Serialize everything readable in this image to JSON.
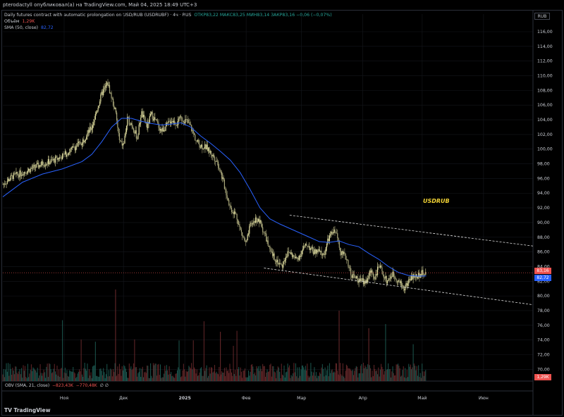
{
  "header": {
    "title": "pterodactyll опубликовал(а) на TradingView.com, Май 04, 2025 18:49 UTC+3",
    "instrument": "Daily futures contract with automatic prolongation on USD/RUB (USDRUBF) · 4ч · RUS",
    "ohlc": "ОТКР83,22  МАКС83,25  МИН83,14  ЗАКР83,16  −0,06 (−0,07%)",
    "volume_label": "Объём",
    "volume_value": "1,29K",
    "sma_label": "SMA (50, close)",
    "sma_value": "82,72",
    "currency_button": "RUB"
  },
  "obv_legend": {
    "label": "OBV (SMA, 21, close)",
    "value1": "−823,43K",
    "value2": "−770,48K",
    "extra": "∅ ∅"
  },
  "branding": "TradingView",
  "badges": {
    "close": "83,16",
    "sma": "82,72",
    "volume": "1,29K"
  },
  "colors": {
    "up": "#26a69a",
    "down": "#ef5350",
    "candle": "#d7d58a",
    "sma": "#2962ff",
    "annotation": "#f2d335",
    "close_badge": "#ef5350",
    "sma_badge": "#2962ff",
    "volume_badge": "#ef5350"
  },
  "chart_data": {
    "type": "line",
    "annotation": "USDRUB",
    "y_ticks": [
      "116,00",
      "114,00",
      "112,00",
      "110,00",
      "108,00",
      "106,00",
      "104,00",
      "102,00",
      "100,00",
      "98,00",
      "96,00",
      "94,00",
      "92,00",
      "90,00",
      "88,00",
      "86,00",
      "84,00",
      "82,00",
      "80,00",
      "78,00",
      "76,00",
      "74,00",
      "72,00",
      "70,00"
    ],
    "ylim": [
      68.4,
      118.4
    ],
    "x_ticks": [
      "Ноя",
      "Дек",
      "2025",
      "Фев",
      "Мар",
      "Апр",
      "Май",
      "Июн"
    ],
    "x_tick_positions_days": [
      31,
      61,
      92,
      123,
      151,
      182,
      212,
      243
    ],
    "xlim_days": [
      0,
      268
    ],
    "price": {
      "x_days": [
        0,
        5,
        10,
        15,
        20,
        25,
        30,
        35,
        40,
        45,
        50,
        53,
        55,
        57,
        59,
        61,
        63,
        65,
        68,
        70,
        73,
        75,
        78,
        80,
        83,
        85,
        88,
        90,
        93,
        95,
        98,
        100,
        103,
        105,
        108,
        110,
        113,
        115,
        118,
        120,
        123,
        125,
        128,
        130,
        133,
        135,
        138,
        141,
        143,
        145,
        148,
        150,
        152,
        154,
        157,
        160,
        162,
        165,
        168,
        171,
        174,
        176,
        178,
        181,
        184,
        186,
        188,
        190,
        192,
        194,
        197,
        200,
        203,
        206,
        209,
        212,
        214
      ],
      "y": [
        95.2,
        96.3,
        96.8,
        97.4,
        98.0,
        98.4,
        99.0,
        100.0,
        101.0,
        103.0,
        107.5,
        109.0,
        107.0,
        105.0,
        101.0,
        100.5,
        104.0,
        103.5,
        101.5,
        105.0,
        103.0,
        104.8,
        103.5,
        102.5,
        103.2,
        104.0,
        103.5,
        104.2,
        103.8,
        103.0,
        101.0,
        100.5,
        100.2,
        99.5,
        98.5,
        97.0,
        94.0,
        92.0,
        91.0,
        89.0,
        87.0,
        89.5,
        90.5,
        90.0,
        88.0,
        86.0,
        85.0,
        84.0,
        85.5,
        86.0,
        85.0,
        85.5,
        86.5,
        87.0,
        86.0,
        86.0,
        85.5,
        88.0,
        89.0,
        86.0,
        85.0,
        83.0,
        82.5,
        82.0,
        82.0,
        83.5,
        82.5,
        84.0,
        83.2,
        82.0,
        83.0,
        82.0,
        81.0,
        82.5,
        82.7,
        83.1,
        83.2
      ]
    },
    "sma": {
      "x_days": [
        0,
        10,
        20,
        30,
        40,
        45,
        50,
        55,
        60,
        65,
        70,
        75,
        80,
        85,
        90,
        95,
        100,
        105,
        110,
        115,
        120,
        125,
        130,
        135,
        140,
        145,
        150,
        155,
        160,
        165,
        170,
        175,
        180,
        185,
        190,
        195,
        200,
        205,
        210,
        214
      ],
      "y": [
        93.5,
        95.5,
        96.6,
        97.3,
        98.3,
        99.3,
        101.0,
        103.0,
        104.2,
        104.2,
        103.8,
        103.5,
        103.3,
        103.4,
        103.6,
        103.0,
        101.8,
        100.8,
        99.7,
        98.5,
        96.8,
        94.5,
        92.0,
        90.5,
        89.8,
        89.2,
        88.6,
        88.0,
        87.4,
        87.3,
        87.5,
        87.0,
        86.7,
        85.8,
        85.0,
        84.0,
        83.2,
        82.8,
        82.7,
        82.72
      ]
    },
    "trendlines": [
      {
        "name": "upper",
        "x_days": [
          145,
          268
        ],
        "y": [
          91.0,
          86.8
        ]
      },
      {
        "name": "lower",
        "x_days": [
          132,
          268
        ],
        "y": [
          83.8,
          78.8
        ]
      }
    ],
    "current_close": 83.16,
    "current_sma": 82.72
  }
}
